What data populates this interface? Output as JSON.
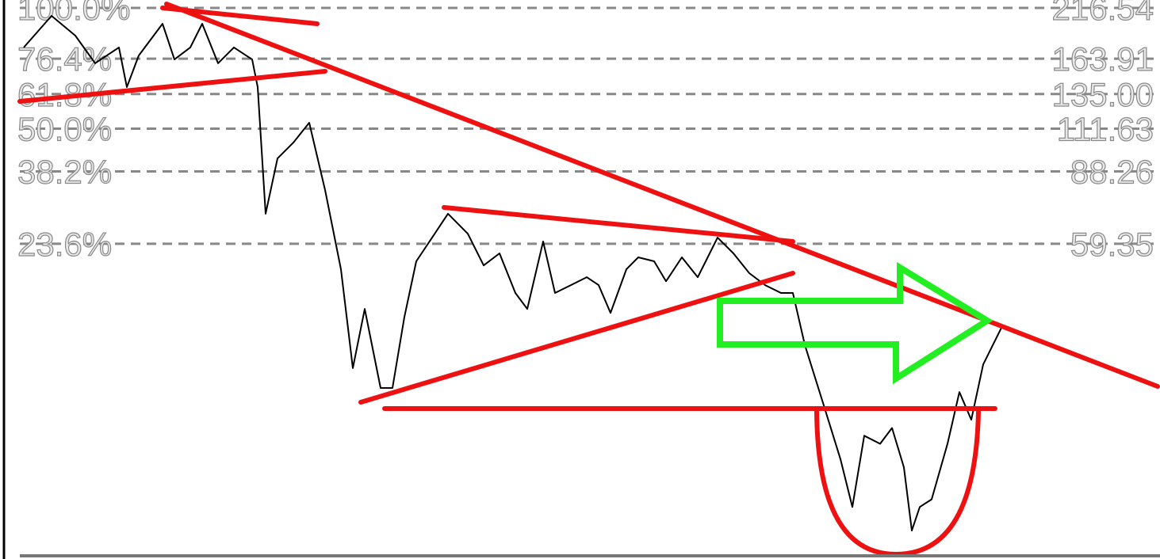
{
  "chart_data": {
    "type": "line",
    "x": [
      30,
      65,
      95,
      120,
      150,
      160,
      175,
      205,
      220,
      240,
      255,
      275,
      295,
      318,
      325,
      335,
      350,
      370,
      390,
      410,
      430,
      445,
      460,
      480,
      495,
      510,
      525,
      545,
      565,
      590,
      610,
      630,
      650,
      665,
      685,
      700,
      720,
      740,
      755,
      770,
      790,
      805,
      825,
      840,
      860,
      880,
      905,
      925,
      945,
      965,
      985,
      1000,
      1015,
      1040,
      1060,
      1075,
      1090,
      1110,
      1125,
      1140,
      1150,
      1160,
      1175,
      1195,
      1210,
      1225,
      1240,
      1255,
      1265
    ],
    "series": [
      {
        "color": "#000000",
        "values": [
          174.3,
          207.3,
          186.0,
          159.8,
          174.3,
          140.2,
          166.8,
          198.5,
          163.2,
          174.3,
          198.5,
          159.8,
          174.3,
          163.2,
          140.2,
          70.0,
          94.8,
          103.4,
          115.3,
          79.7,
          51.6,
          30.0,
          41.5,
          26.9,
          26.9,
          39.7,
          53.9,
          61.4,
          70.0,
          62.7,
          52.7,
          56.3,
          45.3,
          41.5,
          60.1,
          45.3,
          47.3,
          49.4,
          47.3,
          40.6,
          51.6,
          55.1,
          53.9,
          48.3,
          55.1,
          49.4,
          61.4,
          56.3,
          50.5,
          47.3,
          45.3,
          45.3,
          34.1,
          24.1,
          18.2,
          14.0,
          20.7,
          19.8,
          21.6,
          17.4,
          12.3,
          14.0,
          14.6,
          19.8,
          26.3,
          22.6,
          30.6,
          34.9,
          38.1
        ]
      }
    ],
    "xlim": [
      0,
      1463
    ],
    "ylim": [
      10.8,
      216.54
    ],
    "log_scale": true,
    "yticks": [
      216.54,
      163.91,
      {
        "value": 135,
        "label": "135.00"
      },
      111.63,
      88.26,
      59.35
    ],
    "ytick_percent_labels": [
      "100.0%",
      "76.4%",
      "61.8%",
      "50.0%",
      "38.2%",
      "23.6%"
    ],
    "grid": true
  }
}
